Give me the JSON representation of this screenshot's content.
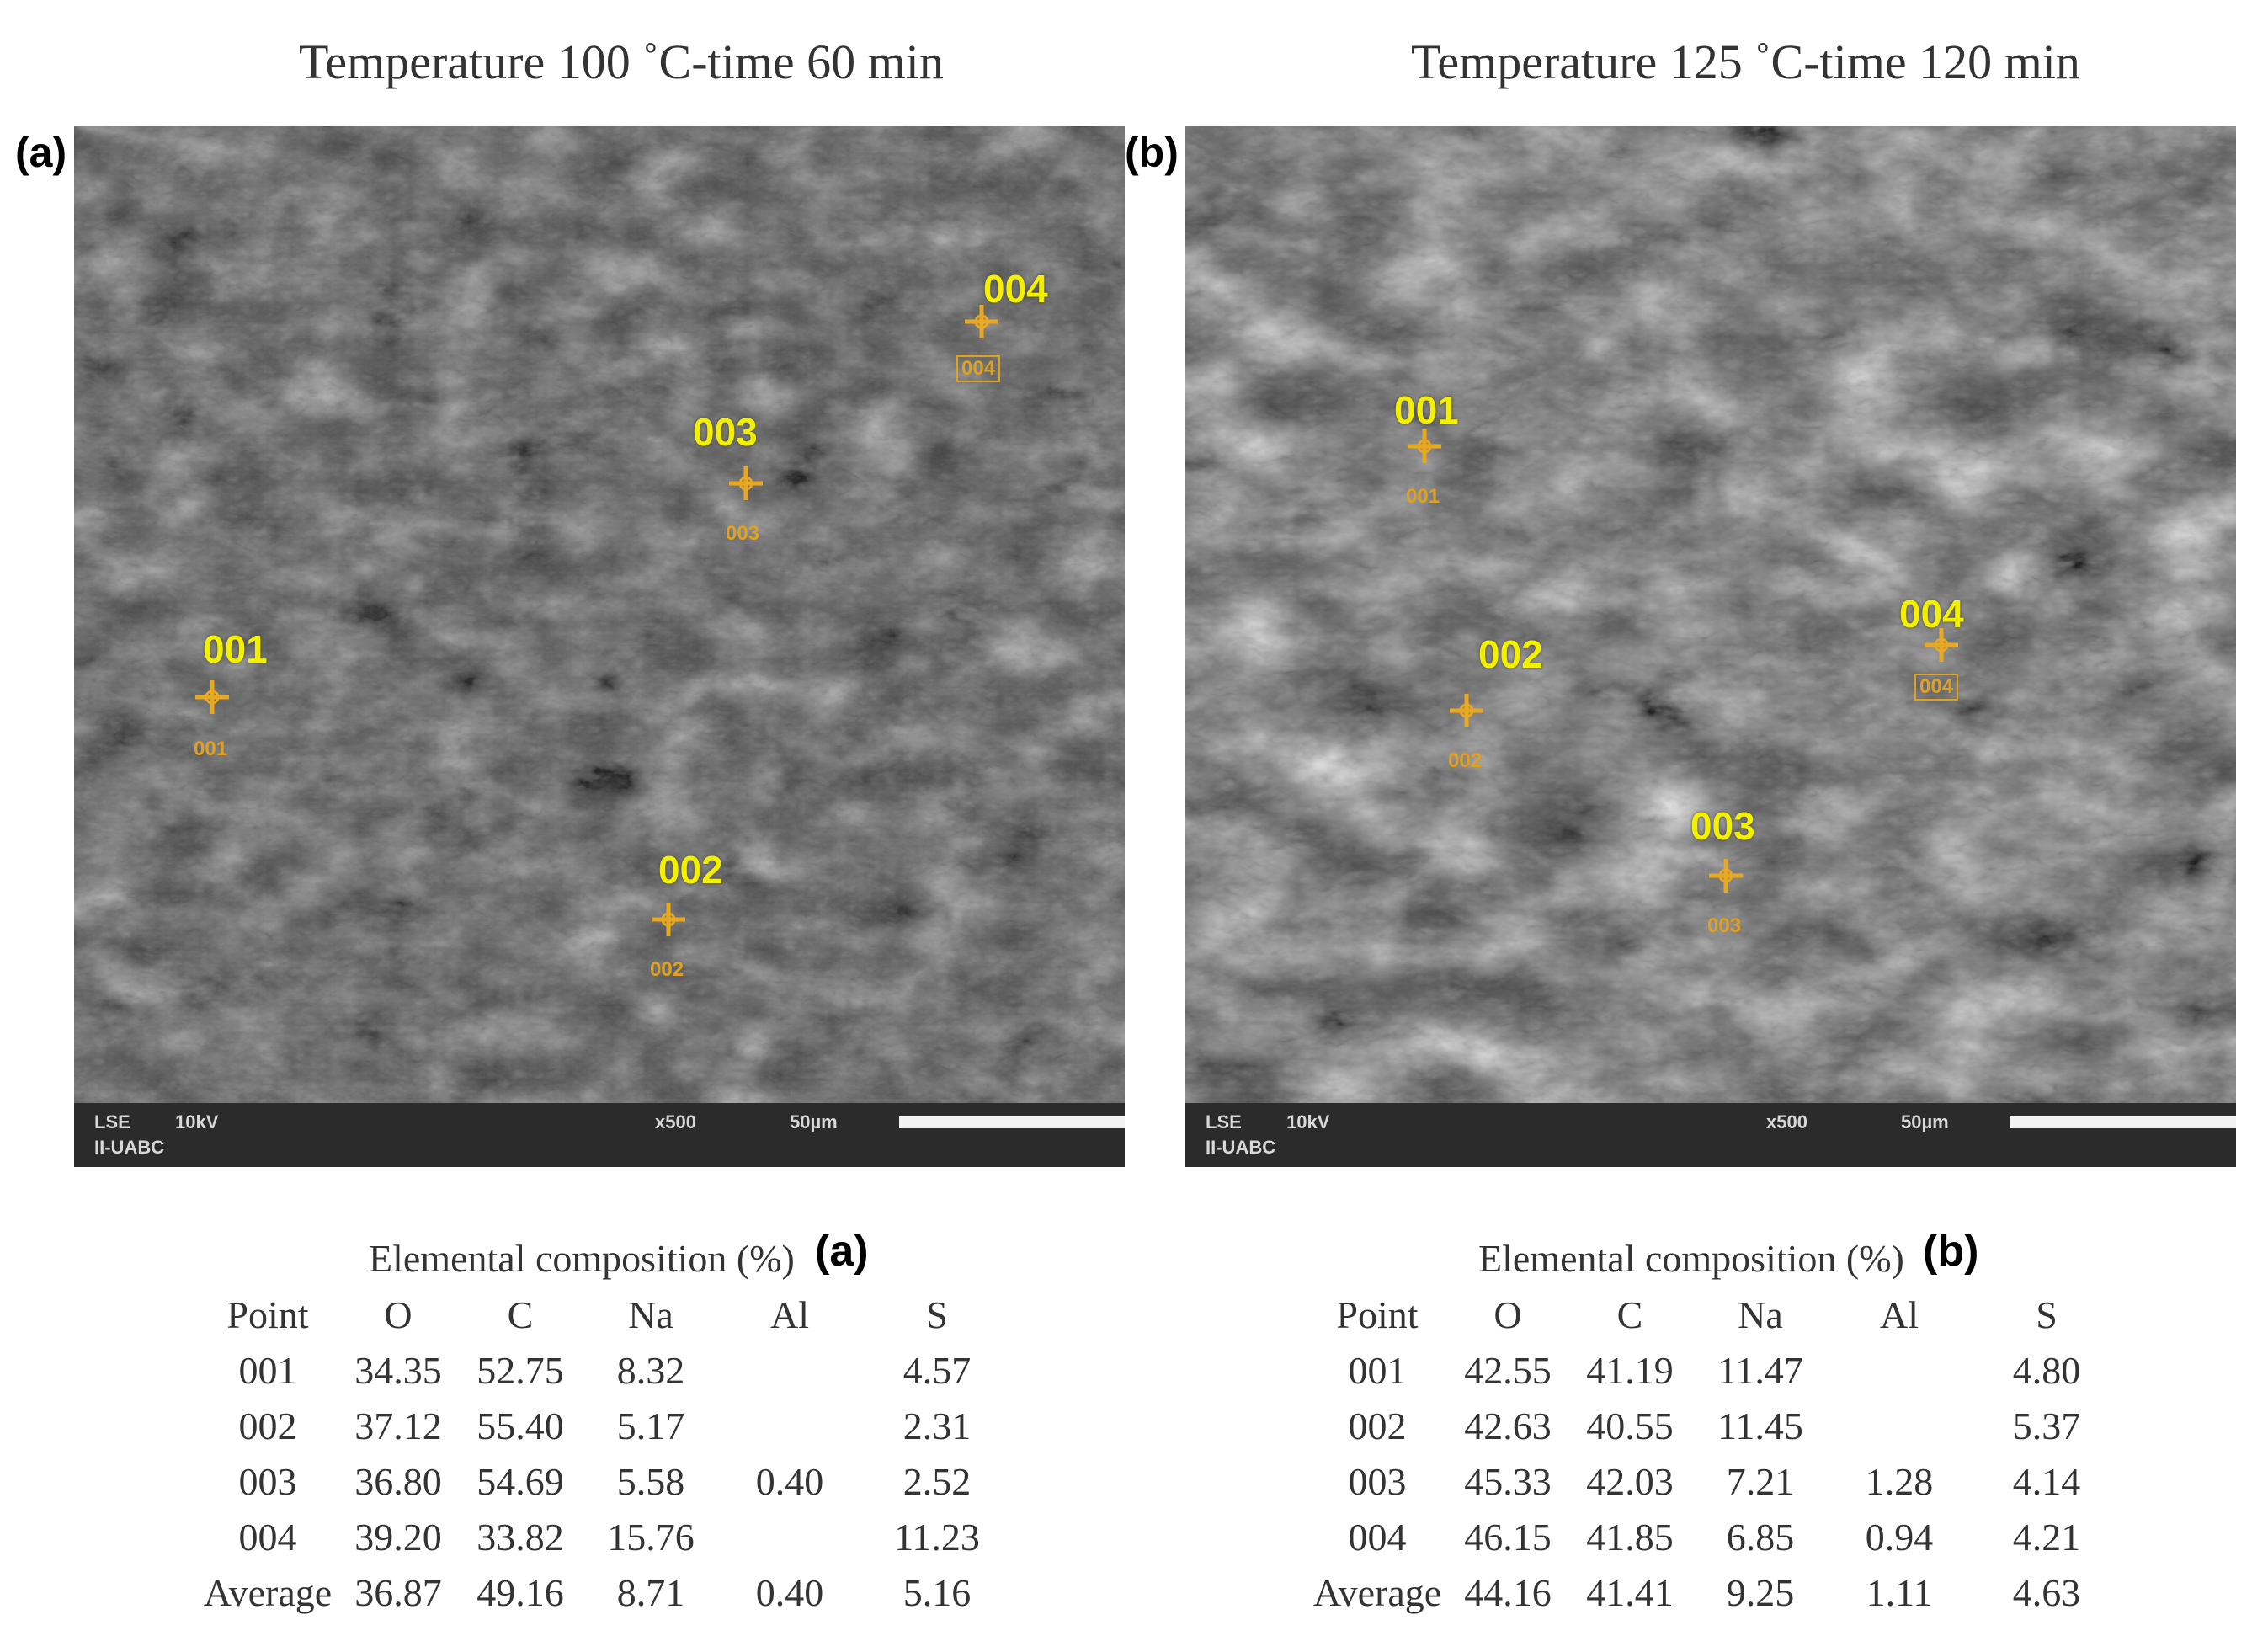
{
  "panels": [
    {
      "title": "Temperature 100 ˚C-time 60 min",
      "letter": "(a)",
      "bar": {
        "detector": "LSE",
        "voltage": "10kV",
        "org": "II-UABC",
        "magnification": "x500",
        "scale": "50µm"
      },
      "markers": [
        {
          "label": "001",
          "small": "001"
        },
        {
          "label": "002",
          "small": "002"
        },
        {
          "label": "003",
          "small": "003"
        },
        {
          "label": "004",
          "small": "004"
        }
      ]
    },
    {
      "title": "Temperature 125 ˚C-time 120 min",
      "letter": "(b)",
      "bar": {
        "detector": "LSE",
        "voltage": "10kV",
        "org": "II-UABC",
        "magnification": "x500",
        "scale": "50µm"
      },
      "markers": [
        {
          "label": "001",
          "small": "001"
        },
        {
          "label": "002",
          "small": "002"
        },
        {
          "label": "003",
          "small": "003"
        },
        {
          "label": "004",
          "small": "004"
        }
      ]
    }
  ],
  "tables": [
    {
      "title": "Elemental composition (%)",
      "letter": "(a)",
      "headers": [
        "Point",
        "O",
        "C",
        "Na",
        "Al",
        "S"
      ],
      "rows": [
        [
          "001",
          "34.35",
          "52.75",
          "8.32",
          "",
          "4.57"
        ],
        [
          "002",
          "37.12",
          "55.40",
          "5.17",
          "",
          "2.31"
        ],
        [
          "003",
          "36.80",
          "54.69",
          "5.58",
          "0.40",
          "2.52"
        ],
        [
          "004",
          "39.20",
          "33.82",
          "15.76",
          "",
          "11.23"
        ],
        [
          "Average",
          "36.87",
          "49.16",
          "8.71",
          "0.40",
          "5.16"
        ]
      ]
    },
    {
      "title": "Elemental composition (%)",
      "letter": "(b)",
      "headers": [
        "Point",
        "O",
        "C",
        "Na",
        "Al",
        "S"
      ],
      "rows": [
        [
          "001",
          "42.55",
          "41.19",
          "11.47",
          "",
          "4.80"
        ],
        [
          "002",
          "42.63",
          "40.55",
          "11.45",
          "",
          "5.37"
        ],
        [
          "003",
          "45.33",
          "42.03",
          "7.21",
          "1.28",
          "4.14"
        ],
        [
          "004",
          "46.15",
          "41.85",
          "6.85",
          "0.94",
          "4.21"
        ],
        [
          "Average",
          "44.16",
          "41.41",
          "9.25",
          "1.11",
          "4.63"
        ]
      ]
    }
  ]
}
